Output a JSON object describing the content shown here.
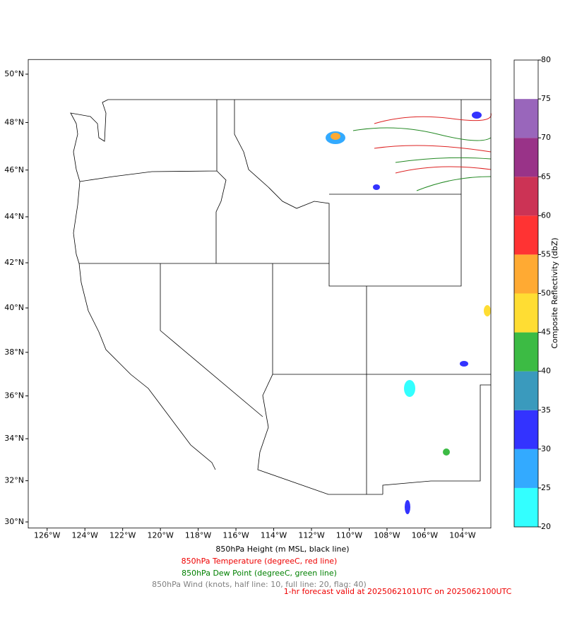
{
  "map": {
    "lonlim": [
      -127,
      -102.5
    ],
    "latlim": [
      29.7,
      50.6
    ],
    "lon_ticks": [
      {
        "value": -126,
        "label": "126°W"
      },
      {
        "value": -124,
        "label": "124°W"
      },
      {
        "value": -122,
        "label": "122°W"
      },
      {
        "value": -120,
        "label": "120°W"
      },
      {
        "value": -118,
        "label": "118°W"
      },
      {
        "value": -116,
        "label": "116°W"
      },
      {
        "value": -114,
        "label": "114°W"
      },
      {
        "value": -112,
        "label": "112°W"
      },
      {
        "value": -110,
        "label": "110°W"
      },
      {
        "value": -108,
        "label": "108°W"
      },
      {
        "value": -106,
        "label": "106°W"
      },
      {
        "value": -104,
        "label": "104°W"
      }
    ],
    "lat_ticks": [
      {
        "value": 30,
        "label": "30°N"
      },
      {
        "value": 32,
        "label": "32°N"
      },
      {
        "value": 34,
        "label": "34°N"
      },
      {
        "value": 36,
        "label": "36°N"
      },
      {
        "value": 38,
        "label": "38°N"
      },
      {
        "value": 40,
        "label": "40°N"
      },
      {
        "value": 42,
        "label": "42°N"
      },
      {
        "value": 44,
        "label": "44°N"
      },
      {
        "value": 46,
        "label": "46°N"
      },
      {
        "value": 48,
        "label": "48°N"
      },
      {
        "value": 50,
        "label": "50°N"
      }
    ]
  },
  "colorbar": {
    "label": "Composite Reflectivity (dbZ)",
    "levels": [
      20,
      25,
      30,
      35,
      40,
      45,
      50,
      55,
      60,
      65,
      70,
      75,
      80
    ],
    "colors": [
      "#33ffff",
      "#33aaff",
      "#3333ff",
      "#3a9abd",
      "#3cbb44",
      "#ffdd33",
      "#ffaa33",
      "#ff3333",
      "#cc3355",
      "#993388",
      "#9966bb",
      "#ffffff"
    ]
  },
  "captions": {
    "height": "850hPa Height (m MSL, black line)",
    "temperature": "850hPa Temperature (degreeC, red line)",
    "dew_point": "850hPa Dew Point (degreeC, green line)",
    "wind": "850hPa Wind (knots, half line: 10, full line: 20, flag: 40)",
    "forecast": "1-hr forecast valid at 2025062101UTC on 2025062100UTC"
  }
}
